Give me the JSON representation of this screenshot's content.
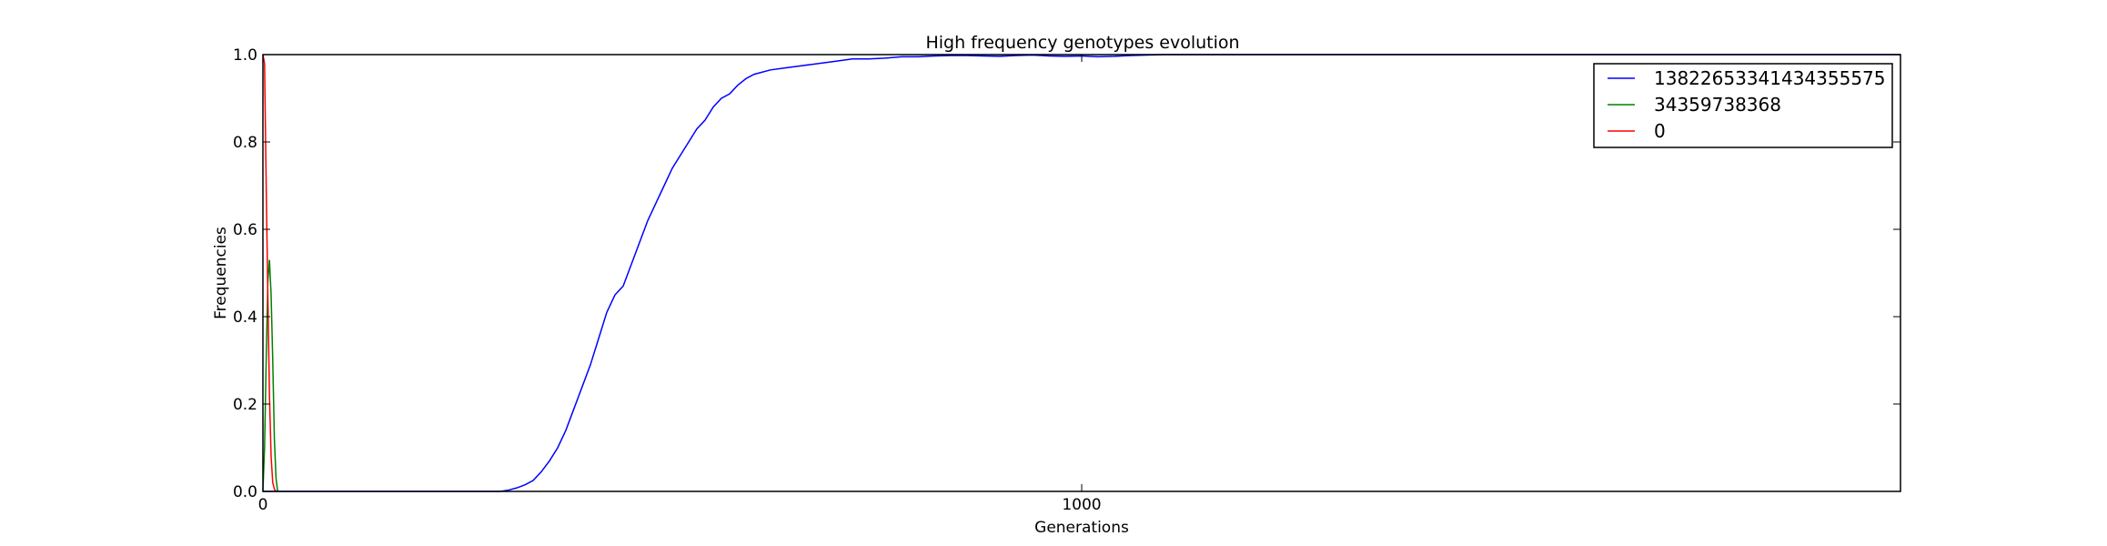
{
  "chart_data": {
    "type": "line",
    "title": "High frequency genotypes evolution",
    "xlabel": "Generations",
    "ylabel": "Frequencies",
    "xlim": [
      0,
      2000
    ],
    "ylim": [
      0,
      1.0
    ],
    "x_ticks": [
      0,
      1000
    ],
    "y_ticks": [
      0.0,
      0.2,
      0.4,
      0.6,
      0.8,
      1.0
    ],
    "y_tick_labels": [
      "0.0",
      "0.2",
      "0.4",
      "0.6",
      "0.8",
      "1.0"
    ],
    "grid": false,
    "legend_position": "top-right",
    "series": [
      {
        "name": "13822653341434355575",
        "color": "#0000ff",
        "x": [
          0,
          290,
          300,
          310,
          320,
          330,
          340,
          350,
          360,
          370,
          380,
          390,
          400,
          410,
          420,
          430,
          440,
          450,
          460,
          470,
          480,
          490,
          500,
          510,
          520,
          530,
          540,
          550,
          560,
          570,
          580,
          590,
          600,
          620,
          640,
          660,
          680,
          700,
          720,
          740,
          760,
          780,
          800,
          820,
          840,
          860,
          880,
          900,
          920,
          940,
          960,
          980,
          1000,
          1020,
          1040,
          1060,
          1080,
          1100,
          1200,
          1400,
          1600,
          1800,
          2000
        ],
        "y": [
          0.0,
          0.0,
          0.003,
          0.008,
          0.015,
          0.025,
          0.045,
          0.07,
          0.1,
          0.14,
          0.19,
          0.24,
          0.29,
          0.35,
          0.41,
          0.45,
          0.47,
          0.52,
          0.57,
          0.62,
          0.66,
          0.7,
          0.74,
          0.77,
          0.8,
          0.83,
          0.85,
          0.88,
          0.9,
          0.91,
          0.93,
          0.945,
          0.955,
          0.965,
          0.97,
          0.975,
          0.98,
          0.985,
          0.99,
          0.99,
          0.992,
          0.995,
          0.995,
          0.997,
          0.998,
          0.998,
          0.997,
          0.996,
          0.998,
          0.999,
          0.997,
          0.996,
          0.997,
          0.995,
          0.996,
          0.998,
          0.999,
          1.0,
          1.0,
          1.0,
          1.0,
          1.0,
          1.0
        ]
      },
      {
        "name": "34359738368",
        "color": "#008000",
        "x": [
          0,
          2,
          4,
          6,
          8,
          10,
          12,
          14,
          16,
          18
        ],
        "y": [
          0.0,
          0.1,
          0.3,
          0.48,
          0.53,
          0.45,
          0.3,
          0.12,
          0.03,
          0.0
        ]
      },
      {
        "name": "0",
        "color": "#ff0000",
        "x": [
          0,
          2,
          4,
          6,
          8,
          10,
          12,
          14,
          16
        ],
        "y": [
          1.0,
          0.98,
          0.7,
          0.45,
          0.22,
          0.08,
          0.02,
          0.005,
          0.0
        ]
      }
    ]
  }
}
